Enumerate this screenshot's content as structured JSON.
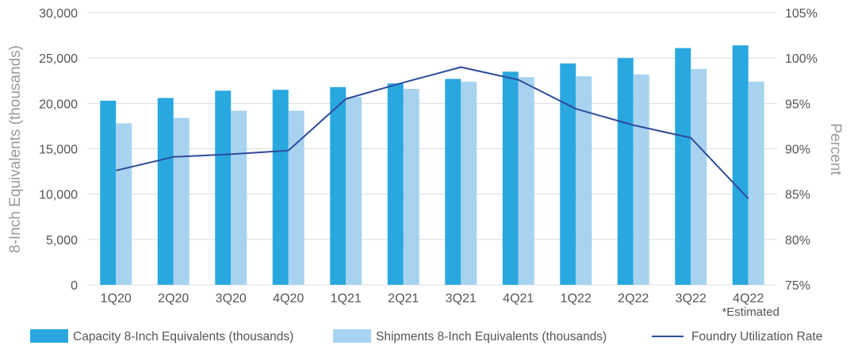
{
  "chart_data": {
    "type": "bar",
    "categories": [
      "1Q20",
      "2Q20",
      "3Q20",
      "4Q20",
      "1Q21",
      "2Q21",
      "3Q21",
      "4Q21",
      "1Q22",
      "2Q22",
      "3Q22",
      "4Q22"
    ],
    "series": [
      {
        "name": "Capacity 8-Inch Equivalents (thousands)",
        "type": "bar",
        "axis": "left",
        "color": "#29a8e0",
        "values": [
          20300,
          20600,
          21400,
          21500,
          21800,
          22200,
          22700,
          23500,
          24400,
          25000,
          26100,
          26400
        ]
      },
      {
        "name": "Shipments 8-Inch Equivalents (thousands)",
        "type": "bar",
        "axis": "left",
        "color": "#a7d3f0",
        "values": [
          17800,
          18400,
          19200,
          19200,
          20700,
          21600,
          22400,
          22900,
          23000,
          23200,
          23800,
          22400
        ]
      },
      {
        "name": "Foundry Utilization Rate",
        "type": "line",
        "axis": "right",
        "color": "#2e4b9b",
        "values": [
          87.6,
          89.1,
          89.4,
          89.8,
          95.5,
          97.3,
          99.0,
          97.6,
          94.4,
          92.6,
          91.2,
          84.5
        ]
      }
    ],
    "ylabel": "8-Inch Equivalents (thousands)",
    "y2label": "Percent",
    "ylim": [
      0,
      30000
    ],
    "y2lim": [
      75,
      105
    ],
    "yticks": [
      "0",
      "5,000",
      "10,000",
      "15,000",
      "20,000",
      "25,000",
      "30,000"
    ],
    "y2ticks": [
      "75%",
      "80%",
      "85%",
      "90%",
      "95%",
      "100%",
      "105%"
    ],
    "grid": true,
    "legend_position": "bottom",
    "annotation": "*Estimated"
  }
}
